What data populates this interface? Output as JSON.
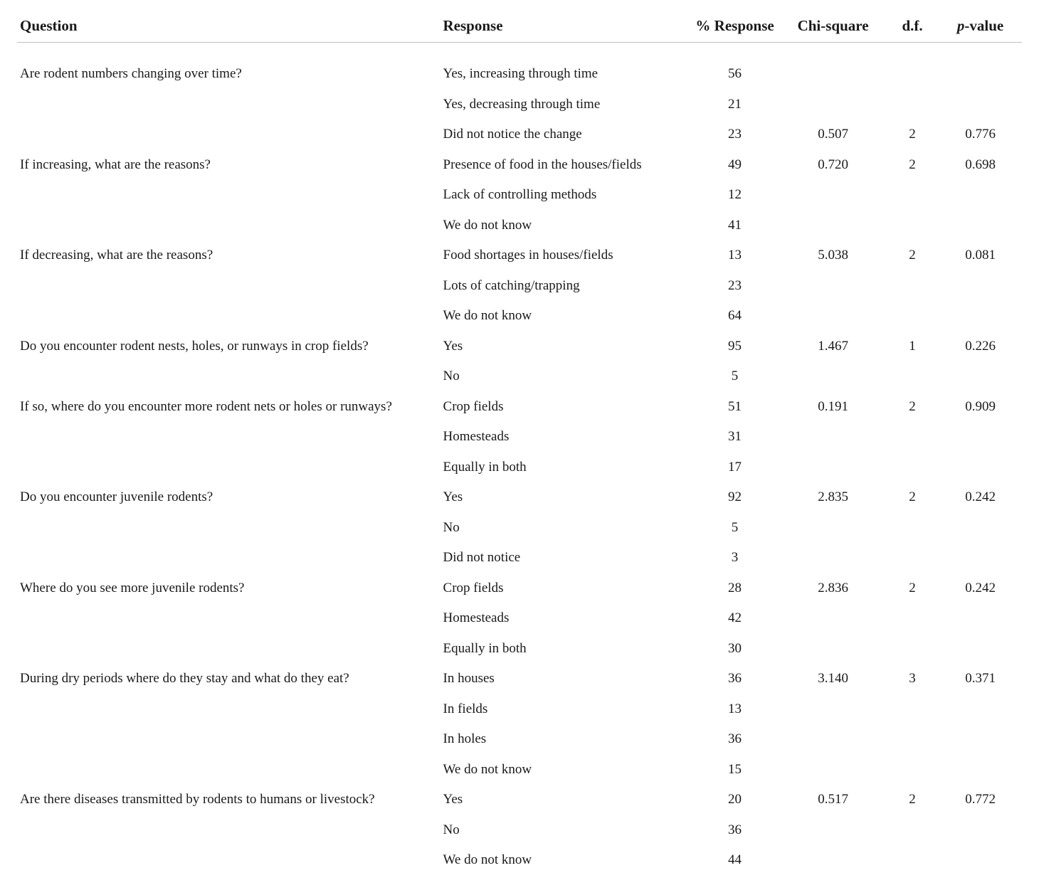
{
  "headers": {
    "question": "Question",
    "response": "Response",
    "pct_response": "% Response",
    "chi_square": "Chi-square",
    "df": "d.f.",
    "pvalue_prefix": "p",
    "pvalue_suffix": "-value"
  },
  "rows": [
    {
      "question": "Are rodent numbers changing over time?",
      "response": "Yes, increasing through time",
      "pct": "56",
      "chi": "",
      "df": "",
      "p": "",
      "group_start": true
    },
    {
      "question": "",
      "response": "Yes, decreasing through time",
      "pct": "21",
      "chi": "",
      "df": "",
      "p": ""
    },
    {
      "question": "",
      "response": "Did not notice the change",
      "pct": "23",
      "chi": "0.507",
      "df": "2",
      "p": "0.776"
    },
    {
      "question": "If increasing, what are the reasons?",
      "response": "Presence of food in the houses/fields",
      "pct": "49",
      "chi": "0.720",
      "df": "2",
      "p": "0.698"
    },
    {
      "question": "",
      "response": "Lack of controlling methods",
      "pct": "12",
      "chi": "",
      "df": "",
      "p": ""
    },
    {
      "question": "",
      "response": "We do not know",
      "pct": "41",
      "chi": "",
      "df": "",
      "p": ""
    },
    {
      "question": "If decreasing, what are the reasons?",
      "response": "Food shortages in houses/fields",
      "pct": "13",
      "chi": "5.038",
      "df": "2",
      "p": "0.081"
    },
    {
      "question": "",
      "response": "Lots of catching/trapping",
      "pct": "23",
      "chi": "",
      "df": "",
      "p": ""
    },
    {
      "question": "",
      "response": "We do not know",
      "pct": "64",
      "chi": "",
      "df": "",
      "p": ""
    },
    {
      "question": "Do you encounter rodent nests, holes, or runways in crop fields?",
      "response": "Yes",
      "pct": "95",
      "chi": "1.467",
      "df": "1",
      "p": "0.226"
    },
    {
      "question": "",
      "response": "No",
      "pct": "5",
      "chi": "",
      "df": "",
      "p": ""
    },
    {
      "question": "If so, where do you encounter more rodent nets or holes or runways?",
      "response": "Crop fields",
      "pct": "51",
      "chi": "0.191",
      "df": "2",
      "p": "0.909"
    },
    {
      "question": "",
      "response": "Homesteads",
      "pct": "31",
      "chi": "",
      "df": "",
      "p": ""
    },
    {
      "question": "",
      "response": "Equally in both",
      "pct": "17",
      "chi": "",
      "df": "",
      "p": ""
    },
    {
      "question": "Do you encounter juvenile rodents?",
      "response": "Yes",
      "pct": "92",
      "chi": "2.835",
      "df": "2",
      "p": "0.242"
    },
    {
      "question": "",
      "response": "No",
      "pct": "5",
      "chi": "",
      "df": "",
      "p": ""
    },
    {
      "question": "",
      "response": "Did not notice",
      "pct": "3",
      "chi": "",
      "df": "",
      "p": ""
    },
    {
      "question": "Where do you see more juvenile rodents?",
      "response": "Crop fields",
      "pct": "28",
      "chi": "2.836",
      "df": "2",
      "p": "0.242"
    },
    {
      "question": "",
      "response": "Homesteads",
      "pct": "42",
      "chi": "",
      "df": "",
      "p": ""
    },
    {
      "question": "",
      "response": "Equally in both",
      "pct": "30",
      "chi": "",
      "df": "",
      "p": ""
    },
    {
      "question": "During dry periods where do they stay and what do they eat?",
      "response": "In houses",
      "pct": "36",
      "chi": "3.140",
      "df": "3",
      "p": "0.371"
    },
    {
      "question": "",
      "response": "In fields",
      "pct": "13",
      "chi": "",
      "df": "",
      "p": ""
    },
    {
      "question": "",
      "response": "In holes",
      "pct": "36",
      "chi": "",
      "df": "",
      "p": ""
    },
    {
      "question": "",
      "response": "We do not know",
      "pct": "15",
      "chi": "",
      "df": "",
      "p": ""
    },
    {
      "question": "Are there diseases transmitted by rodents to humans or livestock?",
      "response": "Yes",
      "pct": "20",
      "chi": "0.517",
      "df": "2",
      "p": "0.772"
    },
    {
      "question": "",
      "response": "No",
      "pct": "36",
      "chi": "",
      "df": "",
      "p": ""
    },
    {
      "question": "",
      "response": "We do not know",
      "pct": "44",
      "chi": "",
      "df": "",
      "p": ""
    }
  ]
}
